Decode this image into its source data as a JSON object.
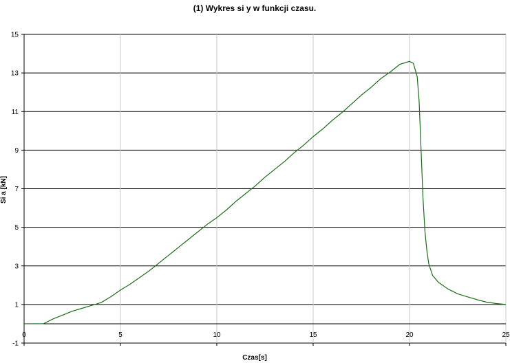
{
  "chart_data": {
    "type": "line",
    "title": "(1) Wykres si y w funkcji czasu.",
    "xlabel": "Czas[s]",
    "ylabel": "Si a [kN]",
    "xlim": [
      0,
      25
    ],
    "ylim": [
      -1,
      15
    ],
    "xticks": [
      "0",
      "5",
      "10",
      "15",
      "20",
      "25"
    ],
    "yticks": [
      "-1",
      "1",
      "3",
      "5",
      "7",
      "9",
      "11",
      "13",
      "15"
    ],
    "grid": "on",
    "legend": "none",
    "series": [
      {
        "color": "#1a6b1a",
        "x": [
          0,
          0.5,
          1.0,
          1.2,
          1.5,
          2.0,
          2.5,
          3.0,
          3.5,
          4.0,
          4.5,
          5.0,
          5.5,
          6.0,
          6.5,
          7.0,
          7.5,
          8.0,
          8.5,
          9.0,
          9.5,
          10.0,
          10.5,
          11.0,
          11.5,
          12.0,
          12.5,
          13.0,
          13.5,
          14.0,
          14.5,
          15.0,
          15.5,
          16.0,
          16.5,
          17.0,
          17.5,
          18.0,
          18.5,
          19.0,
          19.5,
          20.0,
          20.2,
          20.4,
          20.5,
          20.6,
          20.7,
          20.8,
          20.9,
          21.0,
          21.2,
          21.5,
          22.0,
          22.5,
          23.0,
          23.5,
          24.0,
          24.5,
          25.0
        ],
        "y": [
          0.0,
          0.0,
          0.0,
          0.1,
          0.25,
          0.45,
          0.65,
          0.8,
          0.95,
          1.1,
          1.4,
          1.75,
          2.05,
          2.4,
          2.75,
          3.15,
          3.55,
          3.95,
          4.35,
          4.75,
          5.15,
          5.5,
          5.9,
          6.35,
          6.75,
          7.15,
          7.6,
          8.0,
          8.4,
          8.85,
          9.25,
          9.7,
          10.1,
          10.55,
          10.95,
          11.4,
          11.85,
          12.25,
          12.7,
          13.05,
          13.45,
          13.6,
          13.5,
          12.8,
          11.5,
          9.0,
          6.5,
          4.8,
          3.8,
          3.1,
          2.5,
          2.15,
          1.8,
          1.55,
          1.4,
          1.25,
          1.12,
          1.05,
          1.0
        ]
      }
    ]
  }
}
